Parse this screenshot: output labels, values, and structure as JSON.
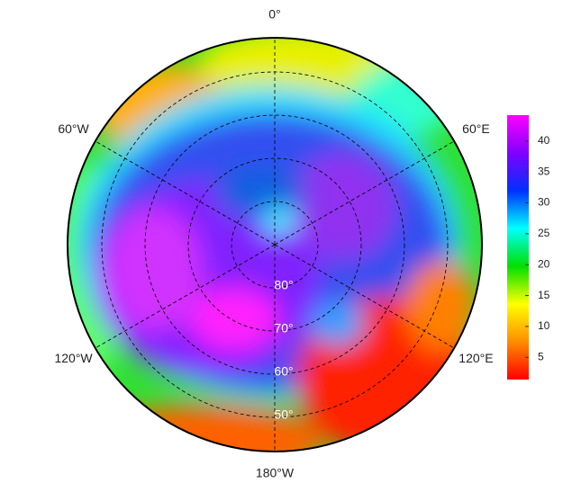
{
  "map": {
    "longitude_labels": [
      {
        "value": 0,
        "label": "0°"
      },
      {
        "value": 60,
        "label": "60°E"
      },
      {
        "value": 120,
        "label": "120°E"
      },
      {
        "value": 180,
        "label": "180°W"
      },
      {
        "value": -120,
        "label": "120°W"
      },
      {
        "value": -60,
        "label": "60°W"
      }
    ],
    "latitude_labels": [
      {
        "value": 80,
        "label": "80°"
      },
      {
        "value": 70,
        "label": "70°"
      },
      {
        "value": 60,
        "label": "60°"
      },
      {
        "value": 50,
        "label": "50°"
      }
    ],
    "colorbar": {
      "range": [
        1.4,
        44.2
      ],
      "ticks": [
        5,
        10,
        15,
        20,
        25,
        30,
        35,
        40
      ],
      "colormap": [
        "#ff0000",
        "#ff8c00",
        "#ffff00",
        "#00e000",
        "#00ffff",
        "#0030ff",
        "#8000ff",
        "#ff00ff"
      ]
    }
  }
}
